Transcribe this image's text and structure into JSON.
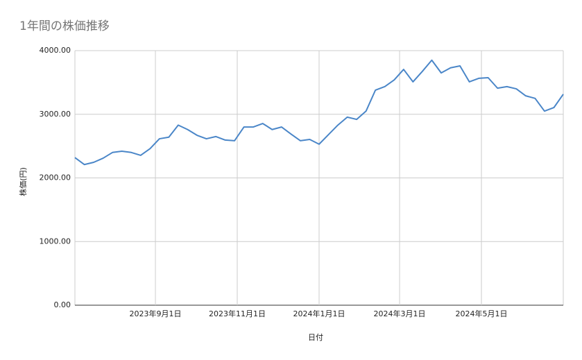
{
  "chart_data": {
    "type": "line",
    "title": "1年間の株価推移",
    "x_label": "日付",
    "y_label": "株価(円)",
    "x": [
      "2023-07-03",
      "2023-07-10",
      "2023-07-17",
      "2023-07-24",
      "2023-07-31",
      "2023-08-07",
      "2023-08-14",
      "2023-08-21",
      "2023-08-28",
      "2023-09-04",
      "2023-09-11",
      "2023-09-18",
      "2023-09-25",
      "2023-10-02",
      "2023-10-09",
      "2023-10-16",
      "2023-10-23",
      "2023-10-30",
      "2023-11-06",
      "2023-11-13",
      "2023-11-20",
      "2023-11-27",
      "2023-12-04",
      "2023-12-11",
      "2023-12-18",
      "2023-12-25",
      "2024-01-01",
      "2024-01-08",
      "2024-01-15",
      "2024-01-22",
      "2024-01-29",
      "2024-02-05",
      "2024-02-12",
      "2024-02-19",
      "2024-02-26",
      "2024-03-04",
      "2024-03-11",
      "2024-03-18",
      "2024-03-25",
      "2024-04-01",
      "2024-04-08",
      "2024-04-15",
      "2024-04-22",
      "2024-04-29",
      "2024-05-06",
      "2024-05-13",
      "2024-05-20",
      "2024-05-27",
      "2024-06-03",
      "2024-06-10",
      "2024-06-17",
      "2024-06-24",
      "2024-07-01"
    ],
    "values": [
      2320,
      2210,
      2245,
      2310,
      2400,
      2420,
      2400,
      2355,
      2460,
      2615,
      2640,
      2830,
      2760,
      2670,
      2615,
      2650,
      2595,
      2585,
      2800,
      2800,
      2855,
      2760,
      2800,
      2690,
      2585,
      2605,
      2530,
      2680,
      2830,
      2955,
      2920,
      3050,
      3380,
      3435,
      3540,
      3705,
      3510,
      3675,
      3850,
      3650,
      3730,
      3760,
      3510,
      3565,
      3575,
      3410,
      3435,
      3400,
      3290,
      3250,
      3050,
      3105,
      3315
    ],
    "color": "#4a86c8",
    "xlim": [
      "2023-07-03",
      "2024-07-01"
    ],
    "xticks": [
      {
        "value": "2023-09-01",
        "label": "2023年9月1日"
      },
      {
        "value": "2023-11-01",
        "label": "2023年11月1日"
      },
      {
        "value": "2024-01-01",
        "label": "2024年1月1日"
      },
      {
        "value": "2024-03-01",
        "label": "2024年3月1日"
      },
      {
        "value": "2024-05-01",
        "label": "2024年5月1日"
      }
    ],
    "ylim": [
      0,
      4000
    ],
    "yticks": [
      {
        "value": 0,
        "label": "0.00"
      },
      {
        "value": 1000,
        "label": "1000.00"
      },
      {
        "value": 2000,
        "label": "2000.00"
      },
      {
        "value": 3000,
        "label": "3000.00"
      },
      {
        "value": 4000,
        "label": "4000.00"
      }
    ],
    "grid": true
  }
}
